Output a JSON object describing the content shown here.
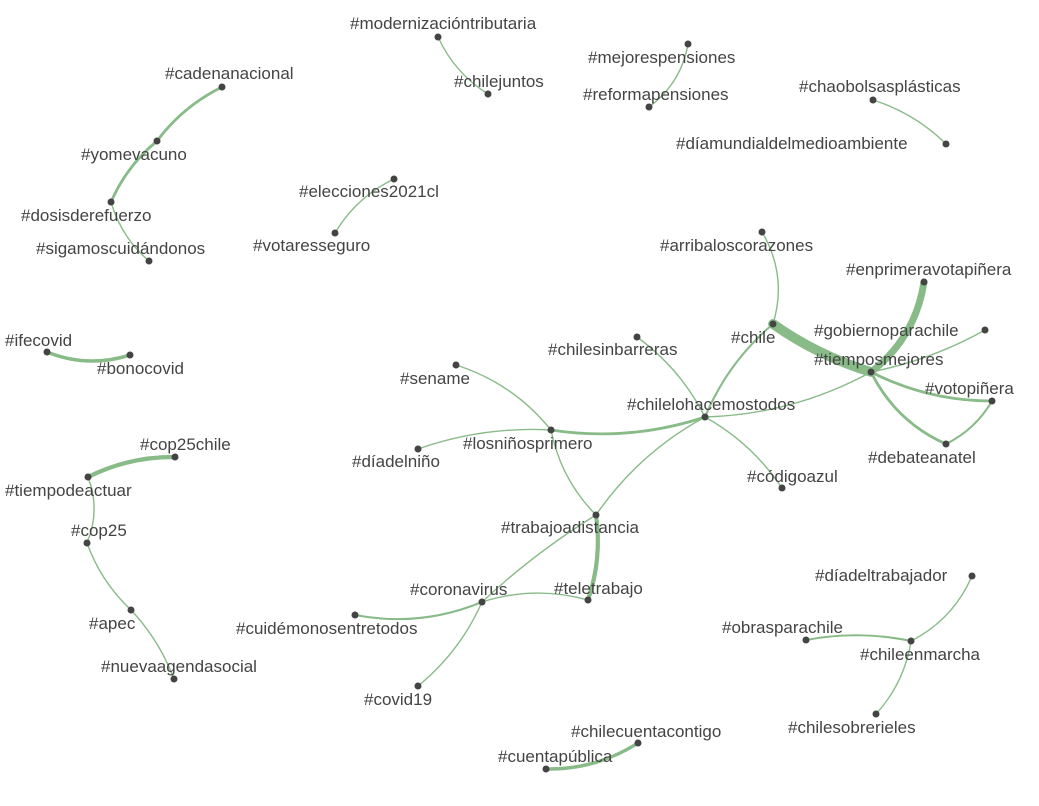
{
  "diagram": {
    "type": "hashtag co-occurrence network",
    "edge_color": "#88bb88",
    "node_color": "#444444",
    "label_color": "#444444",
    "nodes": [
      {
        "id": "modernizacion",
        "label": "#modernizacióntributaria"
      },
      {
        "id": "chilejuntos",
        "label": "#chilejuntos"
      },
      {
        "id": "mejorespensiones",
        "label": "#mejorespensiones"
      },
      {
        "id": "reformapensiones",
        "label": "#reformapensiones"
      },
      {
        "id": "chaobolsas",
        "label": "#chaobolsasplásticas"
      },
      {
        "id": "diamundial",
        "label": "#díamundialdelmedioambiente"
      },
      {
        "id": "cadenanacional",
        "label": "#cadenanacional"
      },
      {
        "id": "yomevacuno",
        "label": "#yomevacuno"
      },
      {
        "id": "dosisderefuerzo",
        "label": "#dosisderefuerzo"
      },
      {
        "id": "sigamoscuidandonos",
        "label": "#sigamoscuidándonos"
      },
      {
        "id": "elecciones2021cl",
        "label": "#elecciones2021cl"
      },
      {
        "id": "votaresseguro",
        "label": "#votaresseguro"
      },
      {
        "id": "arribaloscorazones",
        "label": "#arribaloscorazones"
      },
      {
        "id": "enprimeravotapinera",
        "label": "#enprimeravotapiñera"
      },
      {
        "id": "chile",
        "label": "#chile"
      },
      {
        "id": "gobiernoparachile",
        "label": "#gobiernoparachile"
      },
      {
        "id": "tiemposmejores",
        "label": "#tiemposmejores"
      },
      {
        "id": "votopinera",
        "label": "#votopiñera"
      },
      {
        "id": "debateanatel",
        "label": "#debateanatel"
      },
      {
        "id": "chilesinbarreras",
        "label": "#chilesinbarreras"
      },
      {
        "id": "chilelohacemostodos",
        "label": "#chilelohacemostodos"
      },
      {
        "id": "ifecovid",
        "label": "#ifecovid"
      },
      {
        "id": "bonocovid",
        "label": "#bonocovid"
      },
      {
        "id": "sename",
        "label": "#sename"
      },
      {
        "id": "losninosprimero",
        "label": "#losniñosprimero"
      },
      {
        "id": "diadelnino",
        "label": "#díadelniño"
      },
      {
        "id": "codigoazul",
        "label": "#códigoazul"
      },
      {
        "id": "cop25chile",
        "label": "#cop25chile"
      },
      {
        "id": "tiempodeactuar",
        "label": "#tiempodeactuar"
      },
      {
        "id": "cop25",
        "label": "#cop25"
      },
      {
        "id": "trabajoadistancia",
        "label": "#trabajoadistancia"
      },
      {
        "id": "coronavirus",
        "label": "#coronavirus"
      },
      {
        "id": "teletrabajo",
        "label": "#teletrabajo"
      },
      {
        "id": "cuidemonos",
        "label": "#cuidémonosentretodos"
      },
      {
        "id": "diadeltrabajador",
        "label": "#díadeltrabajador"
      },
      {
        "id": "obrasparachile",
        "label": "#obrasparachile"
      },
      {
        "id": "chileenmarcha",
        "label": "#chileenmarcha"
      },
      {
        "id": "apec",
        "label": "#apec"
      },
      {
        "id": "nuevaagendasocial",
        "label": "#nuevaagendasocial"
      },
      {
        "id": "covid19",
        "label": "#covid19"
      },
      {
        "id": "chilesobrerieles",
        "label": "#chilesobrerieles"
      },
      {
        "id": "chilecuentacontigo",
        "label": "#chilecuentacontigo"
      },
      {
        "id": "cuentapublica",
        "label": "#cuentapública"
      }
    ],
    "edges": [
      {
        "source": "modernizacion",
        "target": "chilejuntos",
        "weight": 1
      },
      {
        "source": "mejorespensiones",
        "target": "reformapensiones",
        "weight": 1
      },
      {
        "source": "chaobolsas",
        "target": "diamundial",
        "weight": 1
      },
      {
        "source": "cadenanacional",
        "target": "yomevacuno",
        "weight": 2
      },
      {
        "source": "yomevacuno",
        "target": "dosisderefuerzo",
        "weight": 2
      },
      {
        "source": "dosisderefuerzo",
        "target": "sigamoscuidandonos",
        "weight": 1
      },
      {
        "source": "elecciones2021cl",
        "target": "votaresseguro",
        "weight": 1
      },
      {
        "source": "ifecovid",
        "target": "bonocovid",
        "weight": 2.5
      },
      {
        "source": "cop25chile",
        "target": "tiempodeactuar",
        "weight": 3
      },
      {
        "source": "tiempodeactuar",
        "target": "cop25",
        "weight": 1
      },
      {
        "source": "cop25",
        "target": "apec",
        "weight": 1
      },
      {
        "source": "apec",
        "target": "nuevaagendasocial",
        "weight": 1
      },
      {
        "source": "arribaloscorazones",
        "target": "chile",
        "weight": 1
      },
      {
        "source": "chile",
        "target": "tiemposmejores",
        "weight": 7
      },
      {
        "source": "chile",
        "target": "chilelohacemostodos",
        "weight": 1.5
      },
      {
        "source": "enprimeravotapinera",
        "target": "tiemposmejores",
        "weight": 5
      },
      {
        "source": "gobiernoparachile",
        "target": "tiemposmejores",
        "weight": 1
      },
      {
        "source": "tiemposmejores",
        "target": "votopinera",
        "weight": 2
      },
      {
        "source": "tiemposmejores",
        "target": "debateanatel",
        "weight": 2
      },
      {
        "source": "votopinera",
        "target": "debateanatel",
        "weight": 1.5
      },
      {
        "source": "tiemposmejores",
        "target": "chilelohacemostodos",
        "weight": 1
      },
      {
        "source": "chilesinbarreras",
        "target": "chilelohacemostodos",
        "weight": 1
      },
      {
        "source": "chilelohacemostodos",
        "target": "codigoazul",
        "weight": 1
      },
      {
        "source": "chilelohacemostodos",
        "target": "losninosprimero",
        "weight": 2
      },
      {
        "source": "chilelohacemostodos",
        "target": "trabajoadistancia",
        "weight": 1
      },
      {
        "source": "sename",
        "target": "losninosprimero",
        "weight": 1
      },
      {
        "source": "diadelnino",
        "target": "losninosprimero",
        "weight": 1
      },
      {
        "source": "losninosprimero",
        "target": "trabajoadistancia",
        "weight": 1
      },
      {
        "source": "trabajoadistancia",
        "target": "teletrabajo",
        "weight": 3
      },
      {
        "source": "trabajoadistancia",
        "target": "coronavirus",
        "weight": 1
      },
      {
        "source": "coronavirus",
        "target": "teletrabajo",
        "weight": 1
      },
      {
        "source": "coronavirus",
        "target": "cuidemonos",
        "weight": 1.5
      },
      {
        "source": "coronavirus",
        "target": "covid19",
        "weight": 1
      },
      {
        "source": "diadeltrabajador",
        "target": "chileenmarcha",
        "weight": 1
      },
      {
        "source": "obrasparachile",
        "target": "chileenmarcha",
        "weight": 1.5
      },
      {
        "source": "chileenmarcha",
        "target": "chilesobrerieles",
        "weight": 1
      },
      {
        "source": "chilecuentacontigo",
        "target": "cuentapublica",
        "weight": 2.5
      }
    ]
  }
}
